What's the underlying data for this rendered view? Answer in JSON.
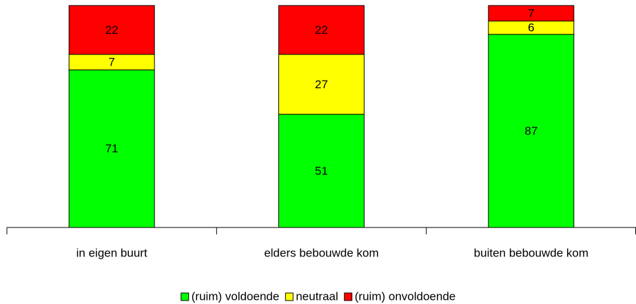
{
  "chart_data": {
    "type": "stacked_bar",
    "categories": [
      "in eigen buurt",
      "elders bebouwde kom",
      "buiten bebouwde kom"
    ],
    "series": [
      {
        "name": "(ruim) voldoende",
        "color": "#00ff00",
        "values": [
          71,
          51,
          87
        ]
      },
      {
        "name": "neutraal",
        "color": "#ffff00",
        "values": [
          7,
          27,
          6
        ]
      },
      {
        "name": "(ruim) onvoldoende",
        "color": "#ff0000",
        "values": [
          22,
          22,
          7
        ]
      }
    ],
    "ylim": [
      0,
      100
    ],
    "legend": "bottom"
  }
}
